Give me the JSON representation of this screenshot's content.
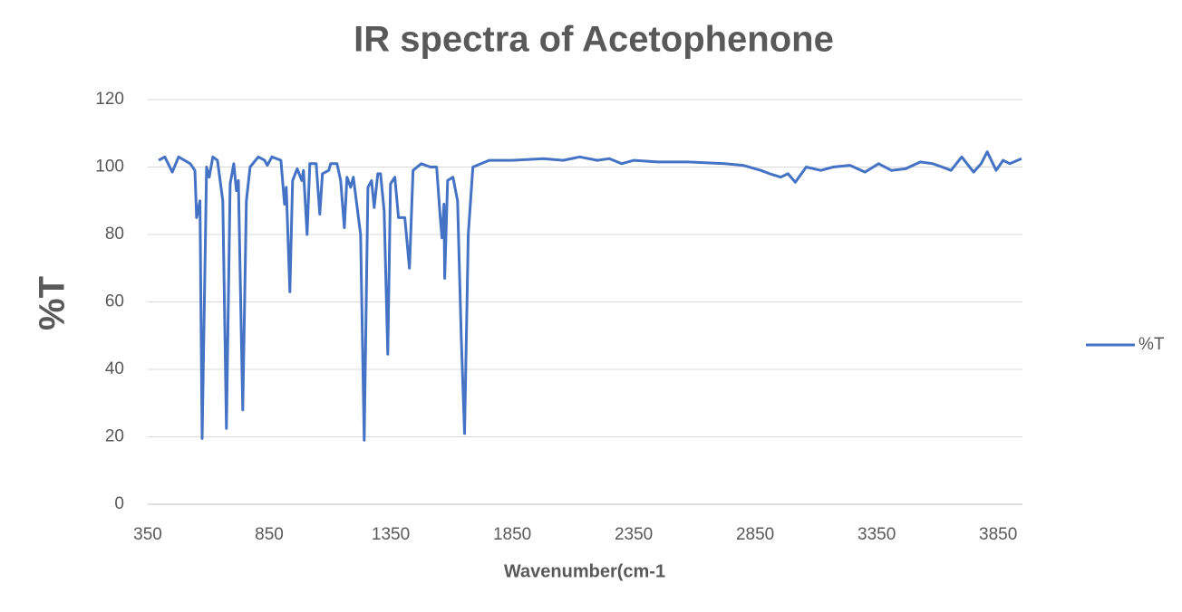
{
  "chart_data": {
    "type": "line",
    "title": "IR spectra of Acetophenone",
    "x_label": "Wavenumber(cm-1",
    "y_label": "%T",
    "x": [
      395,
      420,
      451,
      477,
      525,
      544,
      551,
      565,
      574,
      592,
      603,
      618,
      637,
      659,
      674,
      689,
      704,
      715,
      723,
      741,
      756,
      771,
      805,
      831,
      842,
      861,
      898,
      913,
      920,
      935,
      946,
      965,
      984,
      991,
      1006,
      1017,
      1043,
      1058,
      1069,
      1095,
      1103,
      1129,
      1144,
      1159,
      1170,
      1185,
      1196,
      1226,
      1241,
      1256,
      1271,
      1282,
      1297,
      1308,
      1323,
      1338,
      1349,
      1367,
      1382,
      1408,
      1427,
      1442,
      1476,
      1513,
      1539,
      1554,
      1561,
      1569,
      1572,
      1584,
      1606,
      1625,
      1640,
      1654,
      1669,
      1688,
      1755,
      1850,
      1979,
      2060,
      2128,
      2200,
      2250,
      2300,
      2351,
      2450,
      2575,
      2724,
      2800,
      2873,
      2910,
      2955,
      2985,
      3015,
      3060,
      3120,
      3171,
      3240,
      3302,
      3358,
      3410,
      3469,
      3530,
      3581,
      3620,
      3656,
      3700,
      3749,
      3780,
      3805,
      3842,
      3870,
      3898,
      3946
    ],
    "series": [
      {
        "name": "%T",
        "color": "#4472c4",
        "values": [
          102,
          103,
          98.5,
          103,
          101,
          99,
          85,
          90,
          19.5,
          100,
          97,
          103,
          102,
          90,
          22.5,
          95,
          101,
          93,
          96,
          28,
          90,
          100,
          103,
          102,
          100.5,
          103,
          102,
          89,
          94,
          63,
          96,
          99.5,
          96,
          99,
          80,
          101,
          101,
          86,
          98,
          99,
          101,
          101,
          96,
          82,
          97,
          94,
          97,
          80,
          19,
          94,
          96,
          88,
          98,
          98,
          87,
          44.5,
          95,
          97,
          85,
          85,
          70,
          99,
          101,
          100,
          100,
          85,
          79,
          89,
          67,
          96,
          97,
          90,
          50,
          21,
          80,
          100,
          102,
          102,
          102.5,
          102,
          103,
          102,
          102.5,
          101,
          102,
          101.5,
          101.5,
          101,
          100.5,
          99,
          98,
          97,
          98,
          95.5,
          100,
          99,
          100,
          100.5,
          98.5,
          101,
          99,
          99.5,
          101.5,
          101,
          100,
          99,
          103,
          98.5,
          101,
          104.5,
          99,
          102,
          101,
          102.5
        ]
      }
    ],
    "xlim": [
      350,
      3950
    ],
    "ylim": [
      0,
      120
    ],
    "xticks": [
      350,
      850,
      1350,
      1850,
      2350,
      2850,
      3350,
      3850
    ],
    "yticks": [
      0,
      20,
      40,
      60,
      80,
      100,
      120
    ],
    "grid": true,
    "legend": "right"
  }
}
